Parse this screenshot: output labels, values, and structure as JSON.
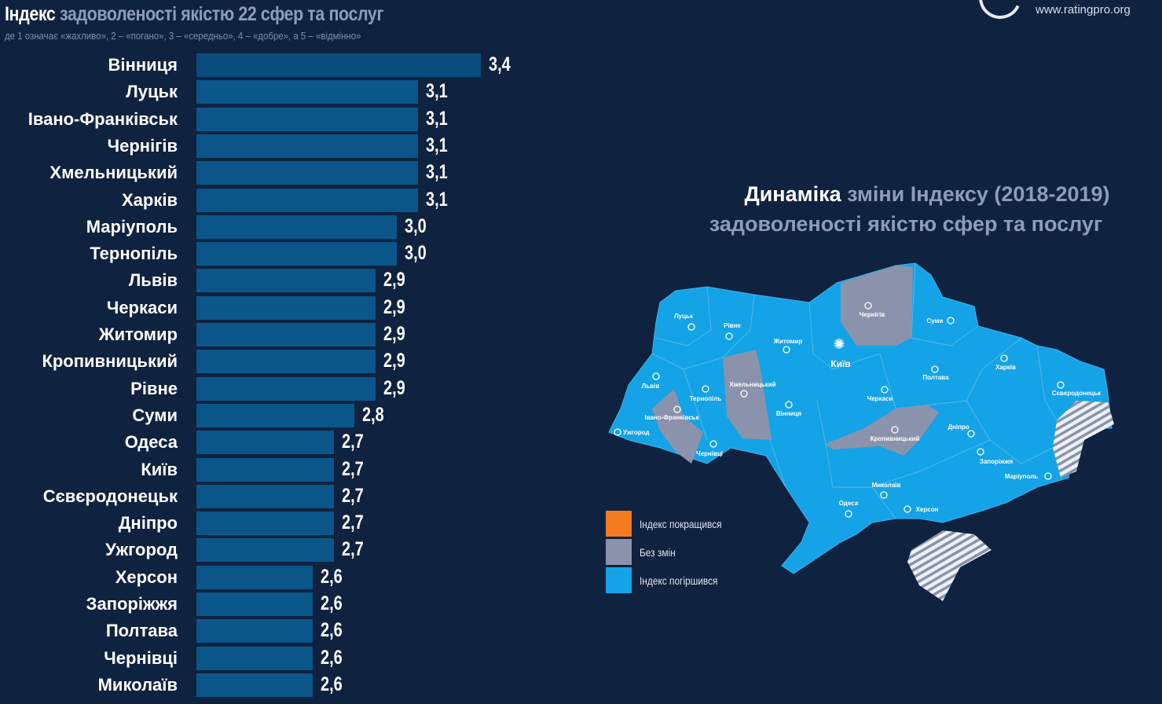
{
  "header": {
    "title_bold": "Індекс",
    "title_rest": "задоволеності якістю 22 сфер та послуг",
    "subtitle": "де 1 означає «жахливо», 2 – «погано», 3 – «середньо», 4 – «добре», а 5 – «відмінно»",
    "website": "www.ratingpro.org"
  },
  "chart_data": {
    "type": "bar",
    "orientation": "horizontal",
    "title": "Індекс задоволеності якістю 22 сфер та послуг",
    "subtitle": "де 1 означає «жахливо», 2 – «погано», 3 – «середньо», 4 – «добре», а 5 – «відмінно»",
    "categories": [
      "Вінниця",
      "Луцьк",
      "Івано-Франківськ",
      "Чернігів",
      "Хмельницький",
      "Харків",
      "Маріуполь",
      "Тернопіль",
      "Львів",
      "Черкаси",
      "Житомир",
      "Кропивницький",
      "Рівне",
      "Суми",
      "Одеса",
      "Київ",
      "Сєвєродонецьк",
      "Дніпро",
      "Ужгород",
      "Херсон",
      "Запоріжжя",
      "Полтава",
      "Чернівці",
      "Миколаїв"
    ],
    "values": [
      3.4,
      3.1,
      3.1,
      3.1,
      3.1,
      3.1,
      3.0,
      3.0,
      2.9,
      2.9,
      2.9,
      2.9,
      2.9,
      2.8,
      2.7,
      2.7,
      2.7,
      2.7,
      2.7,
      2.6,
      2.6,
      2.6,
      2.6,
      2.6
    ],
    "value_labels": [
      "3,4",
      "3,1",
      "3,1",
      "3,1",
      "3,1",
      "3,1",
      "3,0",
      "3,0",
      "2,9",
      "2,9",
      "2,9",
      "2,9",
      "2,9",
      "2,8",
      "2,7",
      "2,7",
      "2,7",
      "2,7",
      "2,7",
      "2,6",
      "2,6",
      "2,6",
      "2,6",
      "2,6"
    ],
    "bar_color": "#0b5688",
    "grid": false
  },
  "map": {
    "title_bold": "Динаміка",
    "title_rest1": "зміни Індексу (2018-2019)",
    "title_line2": "задоволеності якістю сфер та послуг",
    "legend": [
      {
        "label": "Індекс покращився",
        "color": "#f47b20"
      },
      {
        "label": "Без змін",
        "color": "#8a93ab"
      },
      {
        "label": "Індекс погіршився",
        "color": "#14a3e6"
      }
    ],
    "regions_no_change": [
      "Чернігів",
      "Хмельницький",
      "Івано-Франківськ",
      "Кропивницький"
    ],
    "regions_worsened": [
      "Луцьк",
      "Рівне",
      "Житомир",
      "Київ",
      "Суми",
      "Львів",
      "Тернопіль",
      "Вінниця",
      "Ужгород",
      "Чернівці",
      "Полтава",
      "Харків",
      "Черкаси",
      "Сєвєродонецьк",
      "Дніпро",
      "Запоріжжя",
      "Маріуполь",
      "Миколаїв",
      "Одеса",
      "Херсон"
    ],
    "cities": [
      "Луцьк",
      "Рівне",
      "Житомир",
      "Київ",
      "Чернігів",
      "Суми",
      "Львів",
      "Тернопіль",
      "Хмельницький",
      "Вінниця",
      "Івано-Франківськ",
      "Ужгород",
      "Чернівці",
      "Полтава",
      "Харків",
      "Черкаси",
      "Кропивницький",
      "Сєвєродонецьк",
      "Дніпро",
      "Запоріжжя",
      "Маріуполь",
      "Миколаїв",
      "Одеса",
      "Херсон"
    ]
  }
}
